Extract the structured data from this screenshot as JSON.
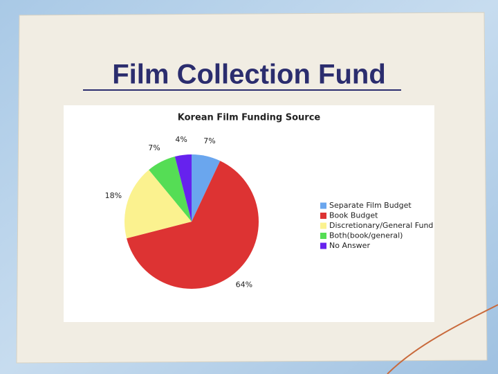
{
  "page_title": "Film Collection Fund",
  "chart_data": {
    "type": "pie",
    "title": "Korean Film Funding Source",
    "categories": [
      "Separate Film Budget",
      "Book Budget",
      "Discretionary/General Fund",
      "Both(book/general)",
      "No Answer"
    ],
    "values": [
      7,
      64,
      18,
      7,
      4
    ],
    "value_labels": [
      "7%",
      "64%",
      "18%",
      "7%",
      "4%"
    ],
    "colors": [
      "#6aa6ee",
      "#dd3333",
      "#fbf28f",
      "#55dd55",
      "#6622ee"
    ],
    "legend": "right"
  }
}
